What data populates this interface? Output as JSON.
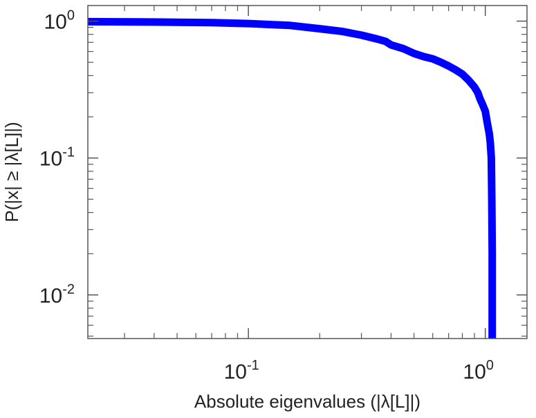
{
  "chart_data": {
    "type": "line",
    "title": "",
    "xlabel": "Absolute eigenvalues (|λ[L]|)",
    "ylabel": "P(|x| ≥ |λ[L]|)",
    "x_scale": "log",
    "y_scale": "log",
    "xlim": [
      0.021,
      1.5
    ],
    "ylim": [
      0.0048,
      1.3
    ],
    "x_ticks": [
      {
        "value": 0.1,
        "base": "10",
        "exp": "-1"
      },
      {
        "value": 1,
        "base": "10",
        "exp": "0"
      }
    ],
    "y_ticks": [
      {
        "value": 1,
        "base": "10",
        "exp": "0"
      },
      {
        "value": 0.1,
        "base": "10",
        "exp": "-1"
      },
      {
        "value": 0.01,
        "base": "10",
        "exp": "-2"
      }
    ],
    "grid": false,
    "legend": "none",
    "series": [
      {
        "color": "#0000ff",
        "x": [
          0.021,
          0.04,
          0.07,
          0.1,
          0.15,
          0.2,
          0.25,
          0.3,
          0.35,
          0.38,
          0.4,
          0.45,
          0.5,
          0.55,
          0.6,
          0.65,
          0.7,
          0.75,
          0.8,
          0.85,
          0.9,
          0.93,
          0.95,
          0.97,
          1.0,
          1.02,
          1.04,
          1.05,
          1.06,
          1.065,
          1.07,
          1.07
        ],
        "y": [
          0.99,
          0.985,
          0.975,
          0.96,
          0.93,
          0.88,
          0.84,
          0.79,
          0.74,
          0.71,
          0.67,
          0.63,
          0.58,
          0.55,
          0.53,
          0.5,
          0.47,
          0.44,
          0.41,
          0.37,
          0.33,
          0.3,
          0.27,
          0.25,
          0.22,
          0.18,
          0.15,
          0.13,
          0.1,
          0.05,
          0.02,
          0.0048
        ]
      }
    ]
  }
}
